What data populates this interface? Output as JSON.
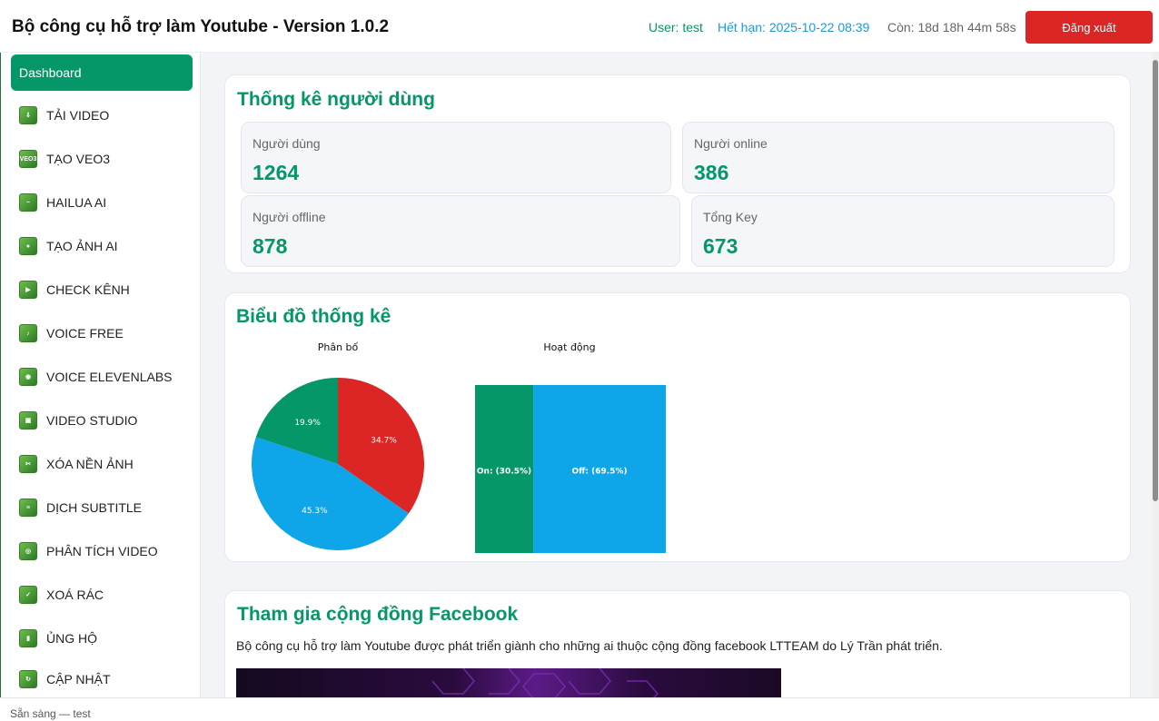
{
  "header": {
    "title": "Bộ công cụ hỗ trợ làm Youtube - Version 1.0.2",
    "user": "User: test",
    "expiry": "Hết hạn: 2025-10-22 08:39",
    "remaining": "Còn: 18d 18h 44m 58s",
    "logout_label": "Đăng xuất"
  },
  "sidebar": {
    "active_label": "Dashboard",
    "items": [
      {
        "label": "TẢI VIDEO",
        "icon": "download-video-icon",
        "glyph": "⇩"
      },
      {
        "label": "TẠO VEO3",
        "icon": "veo3-icon",
        "glyph": "VEO3"
      },
      {
        "label": "HAILUA AI",
        "icon": "hailua-icon",
        "glyph": "~"
      },
      {
        "label": "TẠO ẢNH AI",
        "icon": "image-ai-icon",
        "glyph": "●"
      },
      {
        "label": "CHECK KÊNH",
        "icon": "check-channel-icon",
        "glyph": "▶"
      },
      {
        "label": "VOICE FREE",
        "icon": "voice-free-icon",
        "glyph": "♪"
      },
      {
        "label": "VOICE ELEVENLABS",
        "icon": "voice-elevenlabs-icon",
        "glyph": "◉"
      },
      {
        "label": "VIDEO STUDIO",
        "icon": "video-studio-icon",
        "glyph": "▣"
      },
      {
        "label": "XÓA NỀN ẢNH",
        "icon": "remove-bg-icon",
        "glyph": "✂"
      },
      {
        "label": "DỊCH SUBTITLE",
        "icon": "translate-subtitle-icon",
        "glyph": "≡"
      },
      {
        "label": "PHÂN TÍCH VIDEO",
        "icon": "analyze-video-icon",
        "glyph": "◎"
      },
      {
        "label": "XOÁ RÁC",
        "icon": "clean-trash-icon",
        "glyph": "✓"
      },
      {
        "label": "ỦNG HỘ",
        "icon": "donate-icon",
        "glyph": "▮"
      },
      {
        "label": "CẬP NHẬT",
        "icon": "update-icon",
        "glyph": "↻"
      }
    ]
  },
  "stats": {
    "title": "Thống kê người dùng",
    "users_label": "Người dùng",
    "users_value": "1264",
    "online_label": "Người online",
    "online_value": "386",
    "offline_label": "Người offline",
    "offline_value": "878",
    "keys_label": "Tổng Key",
    "keys_value": "673"
  },
  "charts_card": {
    "title": "Biểu đồ thống kê"
  },
  "chart_data": [
    {
      "type": "pie",
      "title": "Phân bố",
      "slices": [
        {
          "label": "34.7%",
          "value": 34.7,
          "color": "#dc2626"
        },
        {
          "label": "45.3%",
          "value": 45.3,
          "color": "#0ea5e9"
        },
        {
          "label": "19.9%",
          "value": 19.9,
          "color": "#059669"
        }
      ]
    },
    {
      "type": "bar",
      "title": "Hoạt động",
      "segments": [
        {
          "label": "On: (30.5%)",
          "value": 30.5,
          "color": "#059669"
        },
        {
          "label": "Off: (69.5%)",
          "value": 69.5,
          "color": "#0ea5e9"
        }
      ]
    }
  ],
  "community": {
    "title": "Tham gia cộng đồng Facebook",
    "text": "Bộ công cụ hỗ trợ làm Youtube được phát triển giành cho những ai thuộc cộng đồng facebook LTTEAM do Lý Trần phát triển."
  },
  "status": {
    "text": "Sẵn sàng — test"
  }
}
